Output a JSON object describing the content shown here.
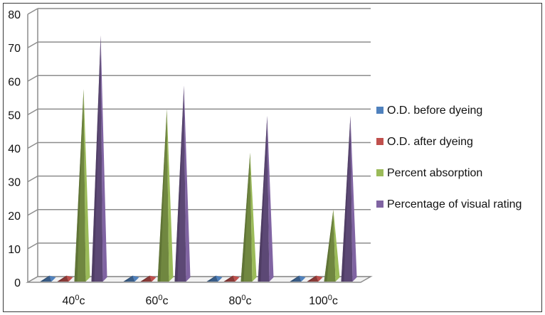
{
  "chart_data": {
    "type": "bar",
    "style": "3d-pyramid",
    "categories": [
      {
        "base": "40",
        "sup": "0",
        "suffix": "c"
      },
      {
        "base": "60",
        "sup": "0",
        "suffix": "c"
      },
      {
        "base": "80",
        "sup": "0",
        "suffix": "c"
      },
      {
        "base": "100",
        "sup": "0",
        "suffix": "c"
      }
    ],
    "series": [
      {
        "name": "O.D. before dyeing",
        "color": "#4f81bd",
        "values": [
          0.3,
          0.3,
          0.3,
          0.3
        ]
      },
      {
        "name": "O.D. after dyeing",
        "color": "#c0504d",
        "values": [
          0.3,
          0.3,
          0.3,
          0.3
        ]
      },
      {
        "name": "Percent absorption",
        "color": "#9bbb59",
        "values": [
          56,
          50,
          37,
          20
        ]
      },
      {
        "name": "Percentage of visual rating",
        "color": "#8064a2",
        "values": [
          72,
          57,
          48,
          48
        ]
      }
    ],
    "y_ticks": [
      "0",
      "10",
      "20",
      "30",
      "40",
      "50",
      "60",
      "70",
      "80"
    ],
    "ylim": [
      0,
      80
    ],
    "grid": true,
    "legend_position": "right"
  }
}
